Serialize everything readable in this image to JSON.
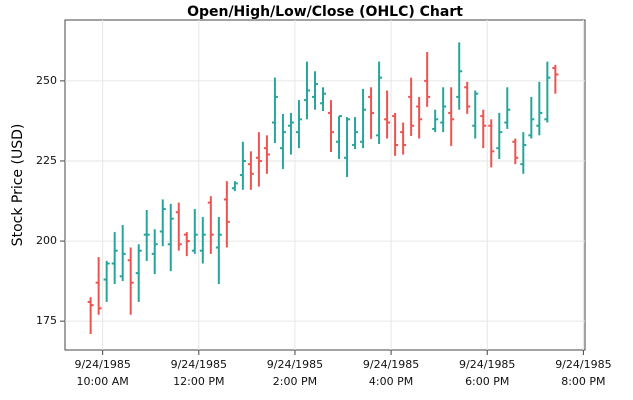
{
  "chart_data": {
    "type": "ohlc",
    "title": "Open/High/Low/Close (OHLC) Chart",
    "ylabel": "Stock Price (USD)",
    "increasing_color": "#26a69a",
    "decreasing_color": "#ef5350",
    "grid": true,
    "xlim": [
      "1985-09-24 09:13",
      "1985-09-24 20:02"
    ],
    "xticks": [
      {
        "value": "1985-09-24 10:00",
        "label": "9/24/1985\n10:00 AM"
      },
      {
        "value": "1985-09-24 12:00",
        "label": "9/24/1985\n12:00 PM"
      },
      {
        "value": "1985-09-24 14:00",
        "label": "9/24/1985\n2:00 PM"
      },
      {
        "value": "1985-09-24 16:00",
        "label": "9/24/1985\n4:00 PM"
      },
      {
        "value": "1985-09-24 18:00",
        "label": "9/24/1985\n6:00 PM"
      },
      {
        "value": "1985-09-24 20:00",
        "label": "9/24/1985\n8:00 PM"
      }
    ],
    "ylim": [
      166,
      269
    ],
    "yticks": [
      175,
      200,
      225,
      250
    ],
    "x": [
      "1985-09-24 09:45",
      "1985-09-24 09:55",
      "1985-09-24 10:05",
      "1985-09-24 10:15",
      "1985-09-24 10:25",
      "1985-09-24 10:35",
      "1985-09-24 10:45",
      "1985-09-24 10:55",
      "1985-09-24 11:05",
      "1985-09-24 11:15",
      "1985-09-24 11:25",
      "1985-09-24 11:35",
      "1985-09-24 11:45",
      "1985-09-24 11:55",
      "1985-09-24 12:05",
      "1985-09-24 12:15",
      "1985-09-24 12:25",
      "1985-09-24 12:35",
      "1985-09-24 12:45",
      "1985-09-24 12:55",
      "1985-09-24 13:05",
      "1985-09-24 13:15",
      "1985-09-24 13:25",
      "1985-09-24 13:35",
      "1985-09-24 13:45",
      "1985-09-24 13:55",
      "1985-09-24 14:05",
      "1985-09-24 14:15",
      "1985-09-24 14:25",
      "1985-09-24 14:35",
      "1985-09-24 14:45",
      "1985-09-24 14:55",
      "1985-09-24 15:05",
      "1985-09-24 15:15",
      "1985-09-24 15:25",
      "1985-09-24 15:35",
      "1985-09-24 15:45",
      "1985-09-24 15:55",
      "1985-09-24 16:05",
      "1985-09-24 16:15",
      "1985-09-24 16:25",
      "1985-09-24 16:35",
      "1985-09-24 16:45",
      "1985-09-24 16:55",
      "1985-09-24 17:05",
      "1985-09-24 17:15",
      "1985-09-24 17:25",
      "1985-09-24 17:35",
      "1985-09-24 17:45",
      "1985-09-24 17:55",
      "1985-09-24 18:05",
      "1985-09-24 18:15",
      "1985-09-24 18:25",
      "1985-09-24 18:35",
      "1985-09-24 18:45",
      "1985-09-24 18:55",
      "1985-09-24 19:05",
      "1985-09-24 19:15",
      "1985-09-24 19:25"
    ],
    "open": [
      181,
      187,
      188,
      193,
      189,
      194,
      190,
      202,
      196,
      203,
      199,
      209,
      202,
      197,
      197,
      212,
      198,
      213,
      216.5,
      220.6,
      224,
      226,
      229,
      237,
      229,
      236,
      234,
      244,
      245,
      243,
      240,
      231,
      226,
      230,
      231,
      245,
      233,
      238,
      239,
      234,
      245,
      242,
      250,
      235,
      237,
      240,
      245,
      248,
      236,
      239,
      236,
      229,
      237,
      231,
      224,
      233,
      236,
      238,
      254
    ],
    "high": [
      182.5,
      195,
      193.8,
      202.8,
      205,
      198,
      199,
      209.7,
      203.7,
      213,
      211.6,
      212,
      202.8,
      210,
      207.5,
      214,
      207.5,
      218.7,
      218.7,
      231,
      228,
      234,
      233,
      251,
      239.7,
      240,
      244,
      256,
      253,
      248,
      244,
      239,
      238.7,
      238.7,
      247.5,
      248,
      256,
      247,
      240,
      237,
      251,
      245,
      259,
      241,
      248,
      248,
      262,
      249.7,
      247,
      241,
      238,
      240,
      248,
      232,
      234,
      245,
      249.7,
      256,
      255
    ],
    "low": [
      171,
      177,
      181,
      186.6,
      187.5,
      177,
      181,
      193.8,
      189.7,
      198.4,
      190.6,
      197,
      195.3,
      196,
      193,
      196,
      186.6,
      198,
      215.6,
      216,
      216,
      217,
      221,
      230.6,
      222.5,
      227,
      229,
      238,
      241,
      240.6,
      227.8,
      225.6,
      220,
      228.7,
      229,
      231.9,
      230.3,
      232,
      226.6,
      227,
      232.8,
      232,
      241.9,
      234,
      234,
      229.7,
      241,
      239.7,
      232,
      229,
      223,
      225.6,
      235,
      224,
      221,
      232,
      233,
      237,
      246
    ],
    "close": [
      180,
      179,
      193,
      197,
      196,
      187,
      197,
      202,
      199,
      210,
      207,
      199,
      200,
      202,
      202,
      202,
      202,
      206,
      218,
      225,
      221,
      225,
      227,
      245,
      234,
      237,
      238,
      247,
      249,
      246,
      234,
      239,
      238,
      234,
      241,
      240,
      251,
      237,
      230,
      230,
      236,
      238,
      245,
      238,
      242,
      238,
      253,
      242,
      246,
      236,
      228,
      234,
      241,
      226,
      230,
      238,
      240,
      251,
      252
    ]
  }
}
